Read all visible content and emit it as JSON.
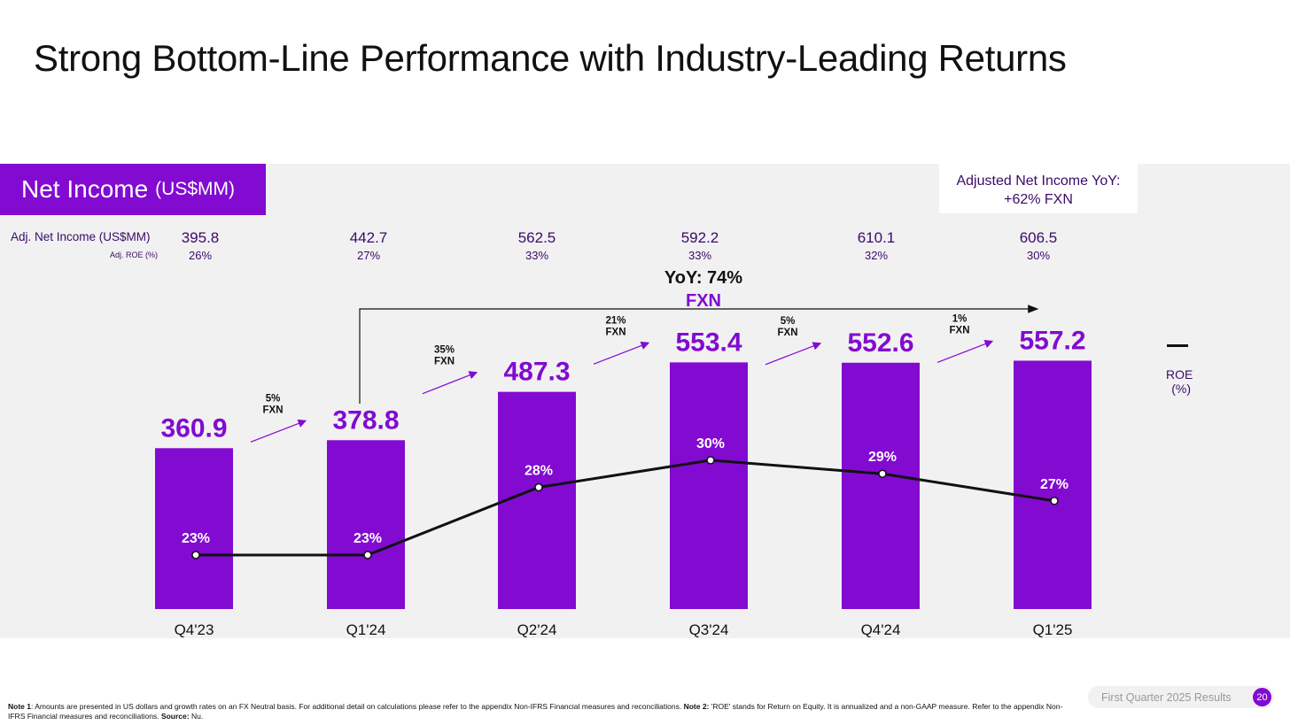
{
  "page": {
    "title": "Strong Bottom-Line Performance with Industry-Leading Returns",
    "brand_color": "#820ad1",
    "page_number": "20",
    "footer_badge": "First Quarter 2025 Results"
  },
  "tab": {
    "main": "Net Income",
    "unit": "(US$MM)"
  },
  "callout": {
    "line1": "Adjusted Net Income YoY:",
    "line2": "+62% FXN"
  },
  "adjusted": {
    "label": "Adj. Net Income (US$MM)",
    "roe_label": "Adj. ROE (%)",
    "values": [
      "395.8",
      "442.7",
      "562.5",
      "592.2",
      "610.1",
      "606.5"
    ],
    "roe": [
      "26%",
      "27%",
      "33%",
      "33%",
      "32%",
      "30%"
    ]
  },
  "yoy": {
    "line1": "YoY: 74%",
    "line2": "FXN"
  },
  "legend": {
    "roe_line1": "ROE",
    "roe_line2": "(%)"
  },
  "footer": {
    "note1_label": "Note 1",
    "note1_text": ": Amounts are presented in US dollars and growth rates on an FX Neutral basis. For additional detail on calculations please refer to the appendix Non-IFRS Financial measures and reconciliations.",
    "note2_label": "Note 2:",
    "note2_text": " 'ROE' stands for Return on Equity. It is annualized and a non-GAAP measure. Refer to the appendix Non-IFRS Financial measures and reconciliations.",
    "source_label": "Source:",
    "source_text": " Nu."
  },
  "chart_data": {
    "type": "bar",
    "categories": [
      "Q4'23",
      "Q1'24",
      "Q2'24",
      "Q3'24",
      "Q4'24",
      "Q1'25"
    ],
    "series": [
      {
        "values": [
          360.9,
          378.8,
          487.3,
          553.4,
          552.6,
          557.2
        ],
        "color": "#820ad1"
      },
      {
        "name": "ROE (%)",
        "type": "line",
        "values": [
          23,
          23,
          28,
          30,
          29,
          27
        ],
        "color": "#111111"
      }
    ],
    "bar_labels": [
      "360.9",
      "378.8",
      "487.3",
      "553.4",
      "552.6",
      "557.2"
    ],
    "roe_labels": [
      "23%",
      "23%",
      "28%",
      "30%",
      "29%",
      "27%"
    ],
    "growth_labels": [
      {
        "pct": "5%",
        "unit": "FXN"
      },
      {
        "pct": "35%",
        "unit": "FXN"
      },
      {
        "pct": "21%",
        "unit": "FXN"
      },
      {
        "pct": "5%",
        "unit": "FXN"
      },
      {
        "pct": "1%",
        "unit": "FXN"
      }
    ],
    "ylim": [
      0,
      615
    ]
  }
}
